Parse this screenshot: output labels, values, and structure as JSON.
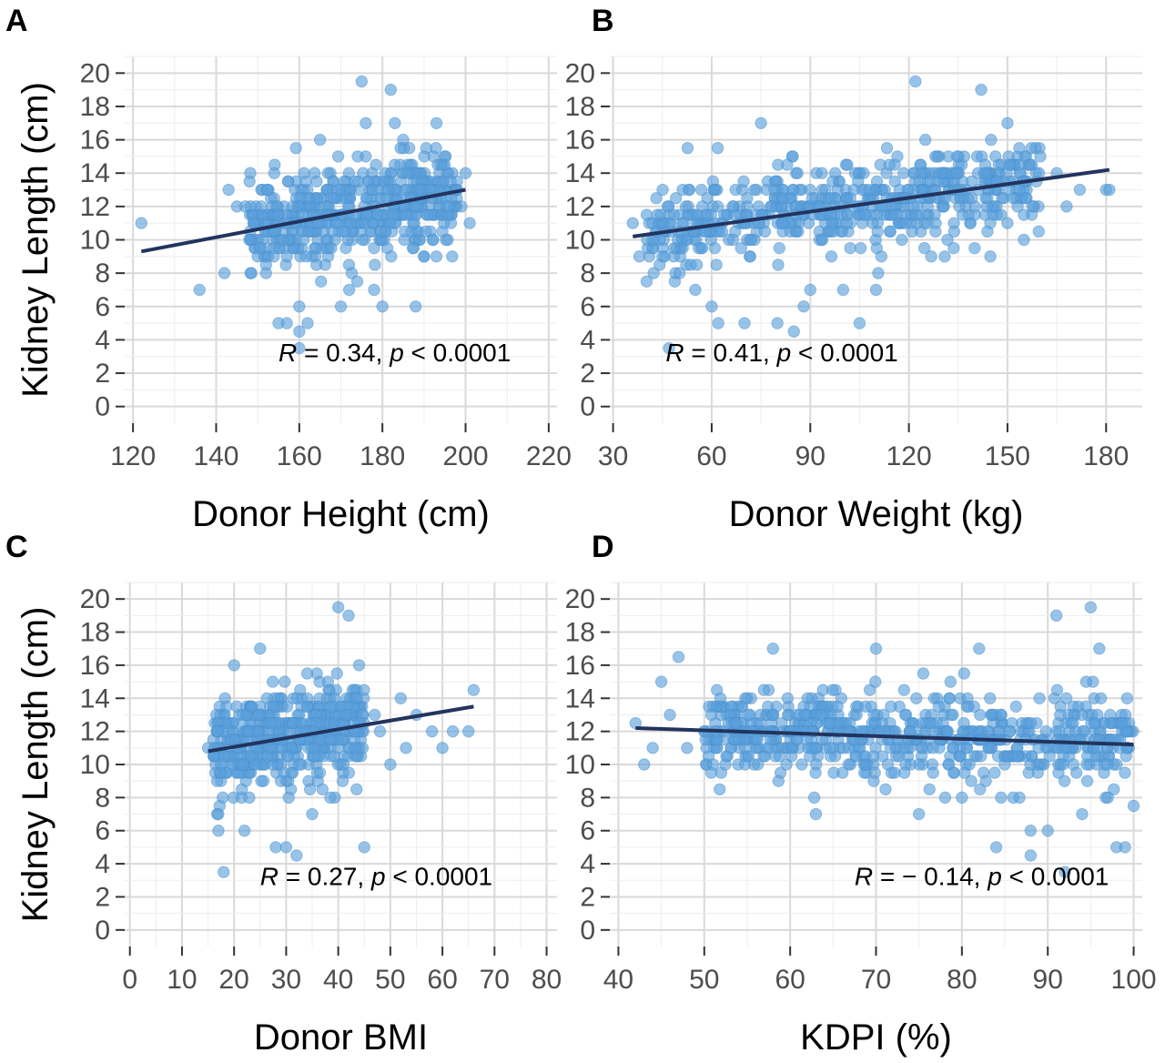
{
  "chart_data": [
    {
      "panel": "A",
      "type": "scatter",
      "xlabel": "Donor Height (cm)",
      "ylabel": "Kidney Length (cm)",
      "xlim": [
        118,
        222
      ],
      "ylim": [
        -1,
        21
      ],
      "xticks": [
        120,
        140,
        160,
        180,
        200,
        220
      ],
      "yticks": [
        0,
        2,
        4,
        6,
        8,
        10,
        12,
        14,
        16,
        18,
        20
      ],
      "annotation": {
        "r_label": "R",
        "r_text": " = 0.34, ",
        "p_label": "p",
        "p_text": " < 0.0001",
        "x": 155,
        "y": 2.7
      },
      "regression": {
        "x": [
          122,
          200
        ],
        "y": [
          9.3,
          13.0
        ]
      },
      "cloud": {
        "xmin": 148,
        "xmax": 198,
        "ycenter": 11.6,
        "spread": 1.6,
        "count": 260
      },
      "points": [
        [
          122,
          11
        ],
        [
          136,
          7
        ],
        [
          142,
          8
        ],
        [
          145,
          12
        ],
        [
          148,
          10
        ],
        [
          150,
          9
        ],
        [
          152,
          8
        ],
        [
          155,
          5
        ],
        [
          157,
          5
        ],
        [
          160,
          6
        ],
        [
          160,
          4.5
        ],
        [
          160,
          3.5
        ],
        [
          162,
          5
        ],
        [
          165,
          16
        ],
        [
          170,
          6
        ],
        [
          172,
          7
        ],
        [
          175,
          19.5
        ],
        [
          176,
          17
        ],
        [
          178,
          7
        ],
        [
          180,
          6
        ],
        [
          182,
          19
        ],
        [
          183,
          17
        ],
        [
          185,
          16
        ],
        [
          188,
          6
        ],
        [
          190,
          9
        ],
        [
          193,
          17
        ],
        [
          195,
          15
        ],
        [
          198,
          13
        ],
        [
          200,
          14
        ],
        [
          201,
          11
        ],
        [
          143,
          13
        ],
        [
          147,
          12
        ],
        [
          149,
          11
        ],
        [
          196,
          12
        ],
        [
          199,
          12
        ]
      ]
    },
    {
      "panel": "B",
      "type": "scatter",
      "xlabel": "Donor Weight (kg)",
      "ylabel": "",
      "xlim": [
        29,
        191
      ],
      "ylim": [
        -1,
        21
      ],
      "xticks": [
        30,
        60,
        90,
        120,
        150,
        180
      ],
      "yticks": [
        0,
        2,
        4,
        6,
        8,
        10,
        12,
        14,
        16,
        18,
        20
      ],
      "annotation": {
        "r_label": "R",
        "r_text": " = 0.41, ",
        "p_label": "p",
        "p_text": " < 0.0001",
        "x": 46,
        "y": 2.7
      },
      "regression": {
        "x": [
          36,
          181
        ],
        "y": [
          10.2,
          14.2
        ]
      },
      "cloud": {
        "xmin": 40,
        "xmax": 160,
        "ycenter": 11.8,
        "spread": 1.5,
        "count": 300
      },
      "points": [
        [
          36,
          11
        ],
        [
          38,
          9
        ],
        [
          42,
          10
        ],
        [
          45,
          9
        ],
        [
          47,
          3.5
        ],
        [
          55,
          7
        ],
        [
          60,
          6
        ],
        [
          62,
          5
        ],
        [
          70,
          5
        ],
        [
          75,
          17
        ],
        [
          80,
          5
        ],
        [
          85,
          4.5
        ],
        [
          88,
          6
        ],
        [
          90,
          7
        ],
        [
          100,
          7
        ],
        [
          105,
          5
        ],
        [
          110,
          7
        ],
        [
          122,
          19.5
        ],
        [
          125,
          16
        ],
        [
          130,
          14
        ],
        [
          140,
          9.5
        ],
        [
          142,
          19
        ],
        [
          145,
          16
        ],
        [
          150,
          17
        ],
        [
          155,
          10
        ],
        [
          160,
          15
        ],
        [
          165,
          14
        ],
        [
          172,
          13
        ],
        [
          180,
          13
        ],
        [
          181,
          13
        ],
        [
          168,
          12
        ]
      ]
    },
    {
      "panel": "C",
      "type": "scatter",
      "xlabel": "Donor BMI",
      "ylabel": "Kidney Length (cm)",
      "xlim": [
        -1,
        82
      ],
      "ylim": [
        -1,
        21
      ],
      "xticks": [
        0,
        10,
        20,
        30,
        40,
        50,
        60,
        70,
        80
      ],
      "yticks": [
        0,
        2,
        4,
        6,
        8,
        10,
        12,
        14,
        16,
        18,
        20
      ],
      "annotation": {
        "r_label": "R",
        "r_text": " = 0.27, ",
        "p_label": "p",
        "p_text": " < 0.0001",
        "x": 25,
        "y": 2.7
      },
      "regression": {
        "x": [
          15,
          66
        ],
        "y": [
          10.8,
          13.5
        ]
      },
      "cloud": {
        "xmin": 16,
        "xmax": 45,
        "ycenter": 11.7,
        "spread": 1.6,
        "count": 240
      },
      "points": [
        [
          15,
          11
        ],
        [
          17,
          6
        ],
        [
          18,
          3.5
        ],
        [
          20,
          16
        ],
        [
          22,
          6
        ],
        [
          25,
          17
        ],
        [
          28,
          5
        ],
        [
          30,
          5
        ],
        [
          32,
          4.5
        ],
        [
          35,
          7
        ],
        [
          40,
          19.5
        ],
        [
          42,
          19
        ],
        [
          45,
          5
        ],
        [
          44,
          16
        ],
        [
          48,
          12
        ],
        [
          50,
          10
        ],
        [
          52,
          14
        ],
        [
          55,
          13
        ],
        [
          58,
          12
        ],
        [
          60,
          11
        ],
        [
          62,
          12
        ],
        [
          65,
          12
        ],
        [
          66,
          14.5
        ],
        [
          47,
          13
        ],
        [
          53,
          11
        ]
      ]
    },
    {
      "panel": "D",
      "type": "scatter",
      "xlabel": "KDPI (%)",
      "ylabel": "",
      "xlim": [
        39,
        101
      ],
      "ylim": [
        -1,
        21
      ],
      "xticks": [
        40,
        50,
        60,
        70,
        80,
        90,
        100
      ],
      "yticks": [
        0,
        2,
        4,
        6,
        8,
        10,
        12,
        14,
        16,
        18,
        20
      ],
      "annotation": {
        "r_label": "R",
        "r_text": " = − 0.14, ",
        "p_label": "p",
        "p_text": " < 0.0001",
        "x": 67.5,
        "y": 2.7
      },
      "regression": {
        "x": [
          42,
          100
        ],
        "y": [
          12.2,
          11.2
        ]
      },
      "cloud": {
        "xmin": 50,
        "xmax": 100,
        "ycenter": 11.5,
        "spread": 1.5,
        "count": 340
      },
      "points": [
        [
          42,
          12.5
        ],
        [
          43,
          10
        ],
        [
          44,
          11
        ],
        [
          45,
          15
        ],
        [
          46,
          13
        ],
        [
          47,
          16.5
        ],
        [
          48,
          11
        ],
        [
          50,
          12
        ],
        [
          58,
          17
        ],
        [
          63,
          7
        ],
        [
          70,
          17
        ],
        [
          75,
          7
        ],
        [
          80,
          8
        ],
        [
          82,
          17
        ],
        [
          84,
          5
        ],
        [
          88,
          4.5
        ],
        [
          88,
          6
        ],
        [
          90,
          6
        ],
        [
          91,
          19
        ],
        [
          92,
          3.5
        ],
        [
          94,
          7
        ],
        [
          95,
          19.5
        ],
        [
          96,
          17
        ],
        [
          98,
          5
        ],
        [
          99,
          5
        ],
        [
          97,
          8
        ],
        [
          100,
          7.5
        ]
      ]
    }
  ]
}
